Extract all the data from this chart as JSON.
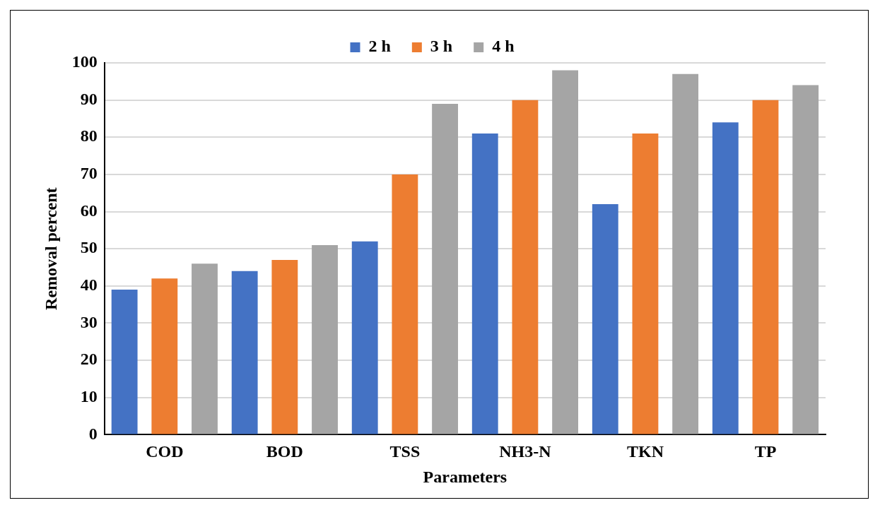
{
  "chart_data": {
    "type": "bar",
    "xlabel": "Parameters",
    "ylabel": "Removal percent",
    "categories": [
      "COD",
      "BOD",
      "TSS",
      "NH3-N",
      "TKN",
      "TP"
    ],
    "series": [
      {
        "name": "2 h",
        "color": "#4472c4",
        "values": [
          39,
          44,
          52,
          81,
          62,
          84
        ]
      },
      {
        "name": "3 h",
        "color": "#ed7d31",
        "values": [
          42,
          47,
          70,
          90,
          81,
          90
        ]
      },
      {
        "name": "4 h",
        "color": "#a5a5a5",
        "values": [
          46,
          51,
          89,
          98,
          97,
          94
        ]
      }
    ],
    "ylim": [
      0,
      100
    ],
    "yticks": [
      0,
      10,
      20,
      30,
      40,
      50,
      60,
      70,
      80,
      90,
      100
    ],
    "grid": "y",
    "legend": "top"
  }
}
